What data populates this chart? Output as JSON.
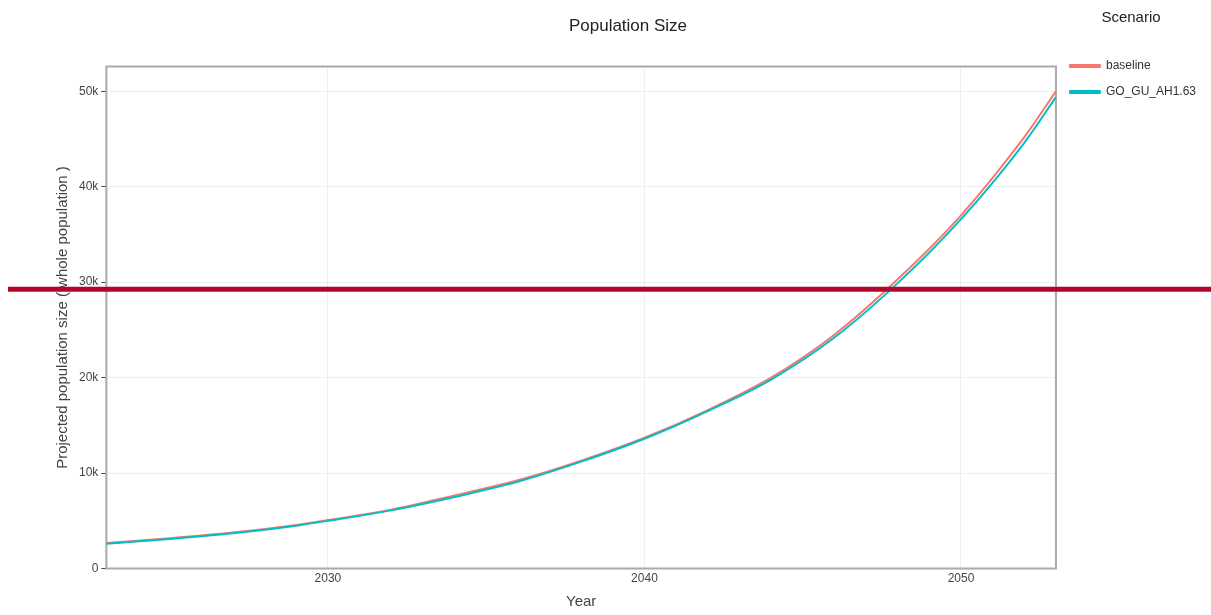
{
  "chart_data": {
    "type": "line",
    "title": "Population Size",
    "xlabel": "Year",
    "ylabel": "Projected population size ( whole population )",
    "legend_title": "Scenario",
    "legend": "top right",
    "grid": true,
    "marker": "none",
    "line_style": "solid",
    "x": [
      2023,
      2025,
      2027,
      2029,
      2030,
      2032,
      2034,
      2036,
      2038,
      2040,
      2042,
      2044,
      2046,
      2048,
      2050,
      2052,
      2053
    ],
    "xlim": [
      2023,
      2053
    ],
    "xticks": [
      2030,
      2040,
      2050
    ],
    "ylim": [
      0,
      52600
    ],
    "yticks": [
      {
        "value": 0,
        "label": "0"
      },
      {
        "value": 10000,
        "label": "10k"
      },
      {
        "value": 20000,
        "label": "20k"
      },
      {
        "value": 30000,
        "label": "30k"
      },
      {
        "value": 40000,
        "label": "40k"
      },
      {
        "value": 50000,
        "label": "50k"
      }
    ],
    "series": [
      {
        "name": "baseline",
        "color": "#f8766d",
        "values": [
          2680,
          3180,
          3780,
          4580,
          5080,
          6160,
          7660,
          9250,
          11300,
          13700,
          16600,
          20000,
          24500,
          30300,
          37000,
          45200,
          50000
        ]
      },
      {
        "name": "GO_GU_AH1.63",
        "color": "#00bfc4",
        "values": [
          2600,
          3100,
          3700,
          4500,
          5000,
          6100,
          7500,
          9100,
          11200,
          13600,
          16500,
          19800,
          24200,
          29900,
          36600,
          44600,
          49400
        ]
      }
    ],
    "ref_lines": [
      {
        "axis": "y",
        "value": 29250,
        "color": "#b0062c",
        "line_style": "solid"
      }
    ]
  }
}
